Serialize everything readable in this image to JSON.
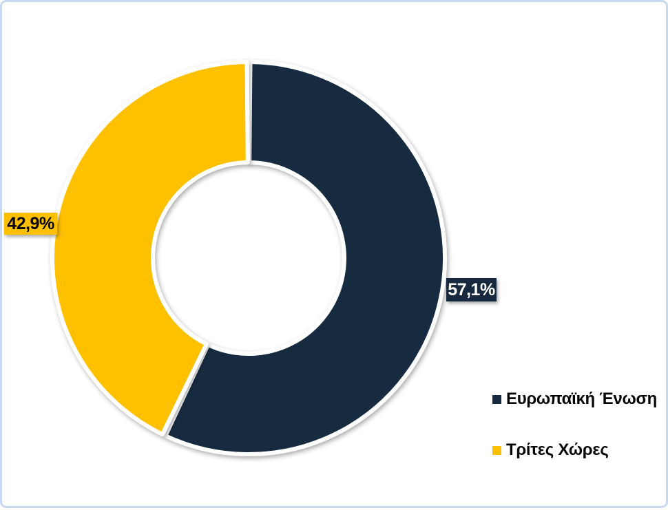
{
  "chart_data": {
    "type": "pie",
    "subtype": "doughnut",
    "title": "",
    "categories": [
      "Ευρωπαϊκή Ένωση",
      "Τρίτες Χώρες"
    ],
    "values": [
      57.1,
      42.9
    ],
    "value_labels": [
      "57,1%",
      "42,9%"
    ],
    "colors": [
      "#16293f",
      "#ffc000"
    ],
    "label_text_colors": [
      "#ffffff",
      "#000000"
    ],
    "hole_ratio": 0.49,
    "start_angle_deg": 0,
    "direction": "clockwise",
    "legend_position": "right",
    "grid": "off",
    "frame_border_color": "#c7d9f1",
    "slice_separator_color": "#ffffff"
  }
}
